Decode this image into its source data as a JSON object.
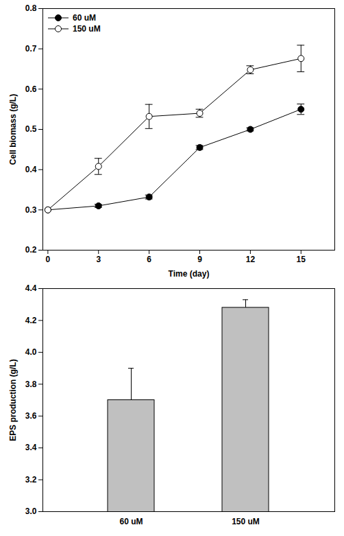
{
  "chart_data": [
    {
      "type": "line",
      "xlabel": "Time (day)",
      "ylabel": "Cell biomass (g/L)",
      "x": [
        0,
        3,
        6,
        9,
        12,
        15
      ],
      "series": [
        {
          "name": "60 uM",
          "color": "#000000",
          "marker": "filled_circle",
          "values": [
            0.3,
            0.31,
            0.332,
            0.455,
            0.5,
            0.55
          ],
          "errors": [
            0,
            0.004,
            0.005,
            0.005,
            0.004,
            0.013
          ]
        },
        {
          "name": "150 uM",
          "color": "#000000",
          "marker": "open_circle",
          "values": [
            0.3,
            0.408,
            0.532,
            0.54,
            0.648,
            0.676
          ],
          "errors": [
            0,
            0.02,
            0.03,
            0.01,
            0.01,
            0.033
          ]
        }
      ],
      "xlim": [
        -0.3,
        17
      ],
      "xticks": [
        0,
        3,
        6,
        9,
        12,
        15
      ],
      "ylim": [
        0.2,
        0.8
      ],
      "yticks": [
        0.2,
        0.3,
        0.4,
        0.5,
        0.6,
        0.7,
        0.8
      ],
      "legend": "upper left"
    },
    {
      "type": "bar",
      "ylabel": "EPS production (g/L)",
      "categories": [
        "60 uM",
        "150 uM"
      ],
      "values": [
        3.7,
        4.28
      ],
      "errors": [
        0.2,
        0.05
      ],
      "color": "#c0c0c0",
      "ylim": [
        3.0,
        4.4
      ],
      "yticks": [
        {
          "value": 3.0,
          "label": "3.0"
        },
        3.2,
        3.4,
        3.6,
        3.8,
        {
          "value": 4.0,
          "label": "4.0"
        },
        4.2,
        4.4
      ]
    }
  ]
}
